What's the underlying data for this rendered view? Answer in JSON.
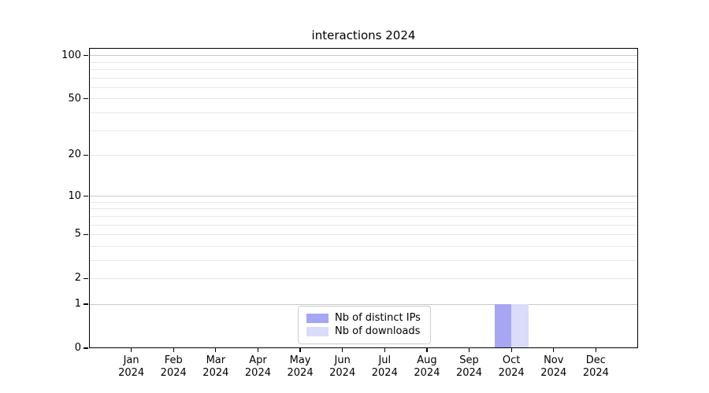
{
  "window": {
    "background": "#ffffff"
  },
  "chart_data": {
    "type": "bar",
    "title": "interactions 2024",
    "scale": "log1p",
    "xlabel": "",
    "ylabel": "",
    "categories": [
      "Jan",
      "Feb",
      "Mar",
      "Apr",
      "May",
      "Jun",
      "Jul",
      "Aug",
      "Sep",
      "Oct",
      "Nov",
      "Dec"
    ],
    "category_year": "2024",
    "series": [
      {
        "name": "Nb of distinct IPs",
        "color": "#a6a6f2",
        "values": [
          0,
          0,
          0,
          0,
          0,
          0,
          0,
          0,
          0,
          1,
          0,
          0
        ]
      },
      {
        "name": "Nb of downloads",
        "color": "#dbdbfa",
        "values": [
          0,
          0,
          0,
          0,
          0,
          0,
          0,
          0,
          0,
          1,
          0,
          0
        ]
      }
    ],
    "ylim": [
      0,
      113
    ],
    "y_tick_labels": [
      0,
      1,
      2,
      5,
      10,
      20,
      50,
      100
    ],
    "y_major_gridlines": [
      1,
      10,
      100
    ],
    "y_minor_gridlines": [
      2,
      3,
      4,
      5,
      6,
      7,
      8,
      9,
      20,
      30,
      40,
      50,
      60,
      70,
      80,
      90
    ],
    "grid": true,
    "legend_position": "lower center",
    "colors": {
      "major_grid": "#c9c9c9",
      "minor_grid": "#e9e9e9",
      "spine": "#000000",
      "text": "#000000"
    }
  }
}
